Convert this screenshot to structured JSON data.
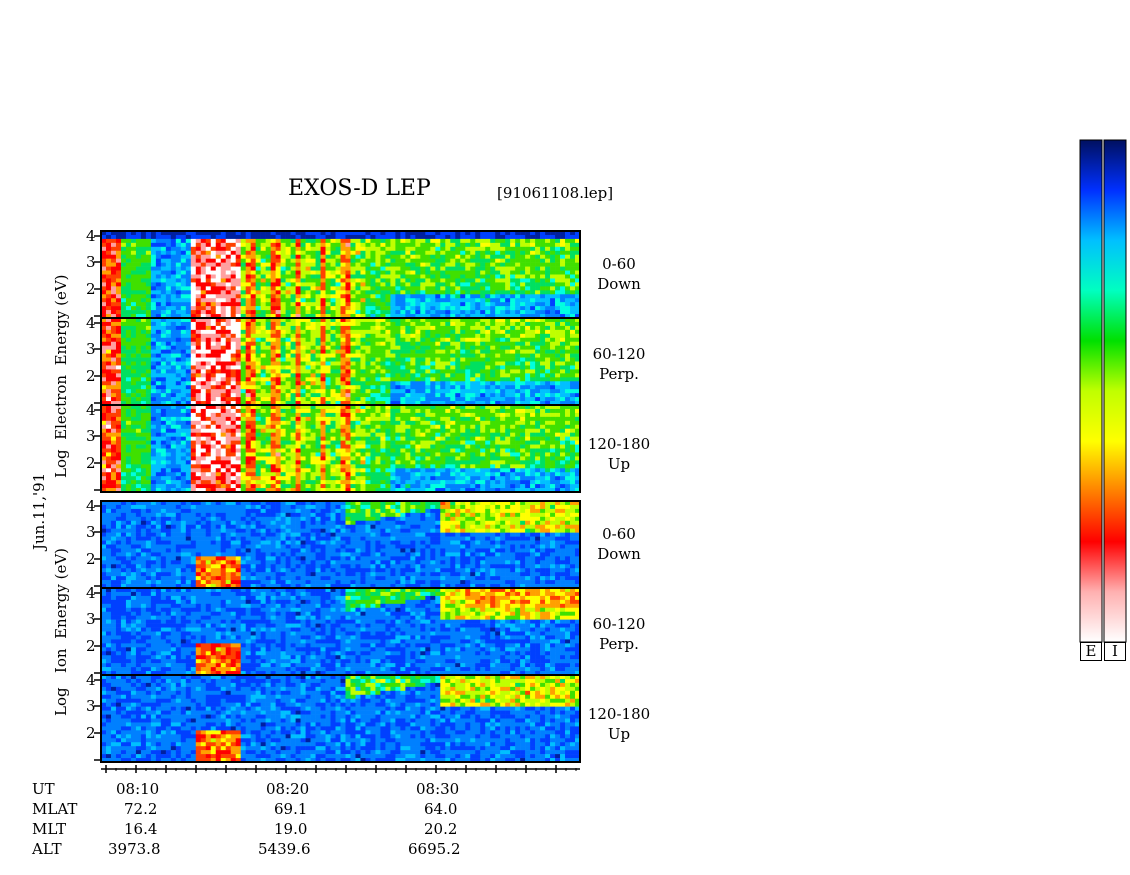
{
  "title": "EXOS-D LEP",
  "filename": "[91061108.lep]",
  "date_label": "Jun.11,'91",
  "electron_ylabel": [
    "Log",
    "Electron",
    "Energy",
    "(eV)"
  ],
  "ion_ylabel": [
    "Log",
    "Ion",
    "Energy",
    "(eV)"
  ],
  "panels": [
    {
      "pitch": "0-60",
      "dir": "Down",
      "species": "electron"
    },
    {
      "pitch": "60-120",
      "dir": "Perp.",
      "species": "electron"
    },
    {
      "pitch": "120-180",
      "dir": "Up",
      "species": "electron"
    },
    {
      "pitch": "0-60",
      "dir": "Down",
      "species": "ion"
    },
    {
      "pitch": "60-120",
      "dir": "Perp.",
      "species": "ion"
    },
    {
      "pitch": "120-180",
      "dir": "Up",
      "species": "ion"
    }
  ],
  "y_ticks": [
    "4",
    "3",
    "2"
  ],
  "x_ticks": [
    "08:10",
    "08:20",
    "08:30"
  ],
  "orbit": {
    "rows": [
      {
        "label": "UT",
        "values": [
          "08:10",
          "08:20",
          "08:30"
        ]
      },
      {
        "label": "MLAT",
        "values": [
          "72.2",
          "69.1",
          "64.0"
        ]
      },
      {
        "label": "MLT",
        "values": [
          "16.4",
          "19.0",
          "20.2"
        ]
      },
      {
        "label": "ALT",
        "values": [
          "3973.8",
          "5439.6",
          "6695.2"
        ]
      }
    ]
  },
  "colorbar": {
    "labels": [
      "E",
      "I"
    ],
    "colors": [
      "#001060",
      "#0030ff",
      "#00c0ff",
      "#00ffc0",
      "#00e000",
      "#c0ff00",
      "#ffff00",
      "#ff8000",
      "#ff0000",
      "#ffb0b0",
      "#ffffff"
    ]
  },
  "chart_data": {
    "type": "heatmap",
    "title": "EXOS-D LEP",
    "x_axis": {
      "ticks": [
        "08:10",
        "08:20",
        "08:30"
      ],
      "range": [
        "~08:07",
        "~08:40"
      ]
    },
    "y_axis": {
      "label_electron": "Log Electron Energy (eV)",
      "label_ion": "Log Ion Energy (eV)",
      "ticks": [
        4,
        3,
        2
      ],
      "range": [
        1,
        4
      ]
    },
    "panels": [
      "electron 0-60 Down",
      "electron 60-120 Perp.",
      "electron 120-180 Up",
      "ion 0-60 Down",
      "ion 60-120 Perp.",
      "ion 120-180 Up"
    ],
    "colorbar_labels": [
      "E",
      "I"
    ]
  }
}
